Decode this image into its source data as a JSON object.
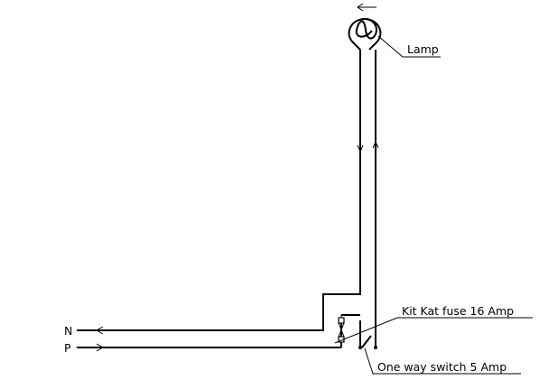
{
  "diagram": {
    "lamp_label": "Lamp",
    "fuse_label": "Kit Kat fuse 16 Amp",
    "switch_label": "One way switch 5 Amp",
    "neutral_label": "N",
    "phase_label": "P"
  }
}
